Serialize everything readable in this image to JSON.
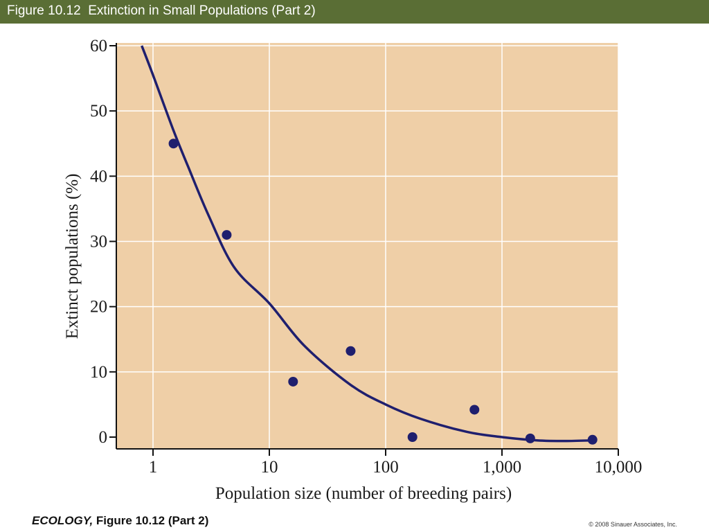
{
  "header": {
    "title": "Figure 10.12  Extinction in Small Populations (Part 2)"
  },
  "footer": {
    "book": "ECOLOGY,",
    "figure": " Figure 10.12 (Part 2)",
    "copyright": "© 2008 Sinauer Associates, Inc."
  },
  "colors": {
    "title_bar": "#5a6e35",
    "plot_background": "#efcfa7",
    "data": "#1f1f6e",
    "grid": "#ffffff"
  },
  "chart_data": {
    "type": "scatter",
    "xlabel": "Population size (number of breeding pairs)",
    "ylabel": "Extinct populations (%)",
    "x_scale": "log",
    "xlim": [
      0.6,
      10000
    ],
    "ylim": [
      0,
      60
    ],
    "x_ticks": [
      1,
      10,
      100,
      1000,
      10000
    ],
    "x_tick_labels": [
      "1",
      "10",
      "100",
      "1,000",
      "10,000"
    ],
    "y_ticks": [
      0,
      10,
      20,
      30,
      40,
      50,
      60
    ],
    "y_tick_labels": [
      "0",
      "10",
      "20",
      "30",
      "40",
      "50",
      "60"
    ],
    "grid": true,
    "series": [
      {
        "kind": "points",
        "x": [
          1.5,
          4.3,
          16,
          50,
          170,
          580,
          1750,
          6000
        ],
        "y": [
          45,
          31,
          8.5,
          13.2,
          0,
          4.2,
          -0.2,
          -0.4
        ]
      },
      {
        "kind": "fitted-curve",
        "x": [
          0.8,
          1,
          1.5,
          2,
          3,
          5,
          10,
          20,
          50,
          100,
          200,
          500,
          1000,
          2000,
          3500,
          6000
        ],
        "y": [
          60,
          55.5,
          47,
          41.5,
          34,
          26,
          20.5,
          14,
          8,
          5,
          2.8,
          0.8,
          0,
          -0.5,
          -0.6,
          -0.5
        ]
      }
    ]
  }
}
